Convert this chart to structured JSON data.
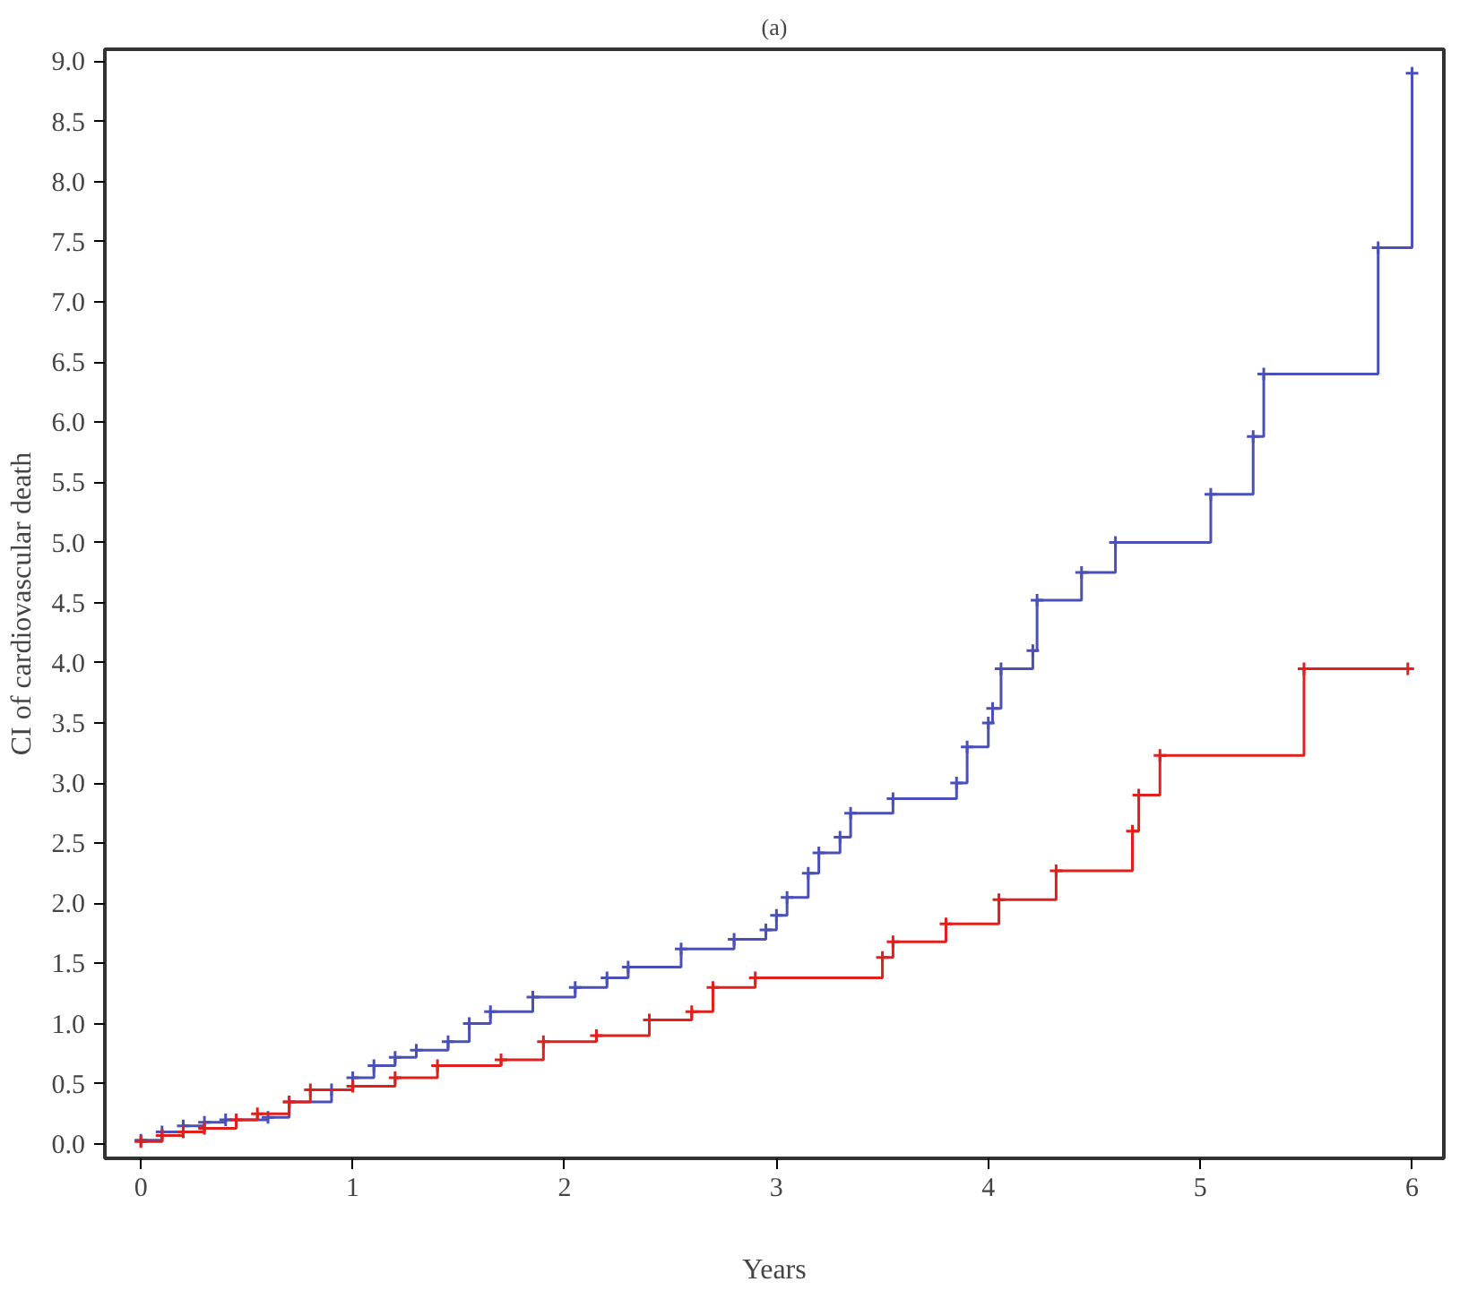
{
  "chart_data": {
    "type": "step",
    "title": "(a)",
    "xlabel": "Years",
    "ylabel": "CI of cardiovascular death",
    "marker": "cross",
    "xlim": [
      -0.17,
      6.15
    ],
    "ylim": [
      -0.12,
      9.1
    ],
    "xticks": [
      0,
      1,
      2,
      3,
      4,
      5,
      6
    ],
    "yticks": [
      {
        "value": 0,
        "label": "0.0"
      },
      {
        "value": 0.5,
        "label": "0.5"
      },
      {
        "value": 1,
        "label": "1.0"
      },
      {
        "value": 1.5,
        "label": "1.5"
      },
      {
        "value": 2,
        "label": "2.0"
      },
      {
        "value": 2.5,
        "label": "2.5"
      },
      {
        "value": 3,
        "label": "3.0"
      },
      {
        "value": 3.5,
        "label": "3.5"
      },
      {
        "value": 4,
        "label": "4.0"
      },
      {
        "value": 4.5,
        "label": "4.5"
      },
      {
        "value": 5,
        "label": "5.0"
      },
      {
        "value": 5.5,
        "label": "5.5"
      },
      {
        "value": 6,
        "label": "6.0"
      },
      {
        "value": 6.5,
        "label": "6.5"
      },
      {
        "value": 7,
        "label": "7.0"
      },
      {
        "value": 7.5,
        "label": "7.5"
      },
      {
        "value": 8,
        "label": "8.0"
      },
      {
        "value": 8.5,
        "label": "8.5"
      },
      {
        "value": 9,
        "label": "9.0"
      }
    ],
    "series": [
      {
        "color": "#4a50b8",
        "x": [
          0,
          0.1,
          0.2,
          0.3,
          0.4,
          0.6,
          0.7,
          0.9,
          1.0,
          1.1,
          1.2,
          1.3,
          1.45,
          1.55,
          1.65,
          1.85,
          2.05,
          2.2,
          2.3,
          2.55,
          2.8,
          2.95,
          3.0,
          3.05,
          3.15,
          3.2,
          3.3,
          3.35,
          3.55,
          3.85,
          3.9,
          4.0,
          4.02,
          4.06,
          4.21,
          4.23,
          4.44,
          4.6,
          5.05,
          5.25,
          5.3,
          5.84,
          6.0
        ],
        "values": [
          0.03,
          0.1,
          0.15,
          0.18,
          0.2,
          0.22,
          0.35,
          0.45,
          0.55,
          0.65,
          0.72,
          0.78,
          0.85,
          1.0,
          1.1,
          1.22,
          1.3,
          1.38,
          1.47,
          1.62,
          1.7,
          1.78,
          1.9,
          2.05,
          2.25,
          2.42,
          2.55,
          2.75,
          2.87,
          3.0,
          3.3,
          3.5,
          3.62,
          3.95,
          4.1,
          4.52,
          4.75,
          5.0,
          5.4,
          5.88,
          6.4,
          7.45,
          8.9
        ]
      },
      {
        "color": "#e0201c",
        "x": [
          0,
          0.1,
          0.2,
          0.3,
          0.45,
          0.55,
          0.7,
          0.8,
          1.0,
          1.2,
          1.4,
          1.7,
          1.9,
          2.15,
          2.4,
          2.6,
          2.7,
          2.9,
          3.5,
          3.55,
          3.8,
          4.05,
          4.32,
          4.68,
          4.71,
          4.81,
          5.49,
          5.98
        ],
        "values": [
          0.02,
          0.07,
          0.1,
          0.13,
          0.2,
          0.25,
          0.35,
          0.45,
          0.48,
          0.55,
          0.65,
          0.7,
          0.85,
          0.9,
          1.03,
          1.1,
          1.3,
          1.38,
          1.55,
          1.68,
          1.83,
          2.03,
          2.27,
          2.6,
          2.9,
          3.23,
          3.95,
          3.95
        ]
      }
    ]
  }
}
